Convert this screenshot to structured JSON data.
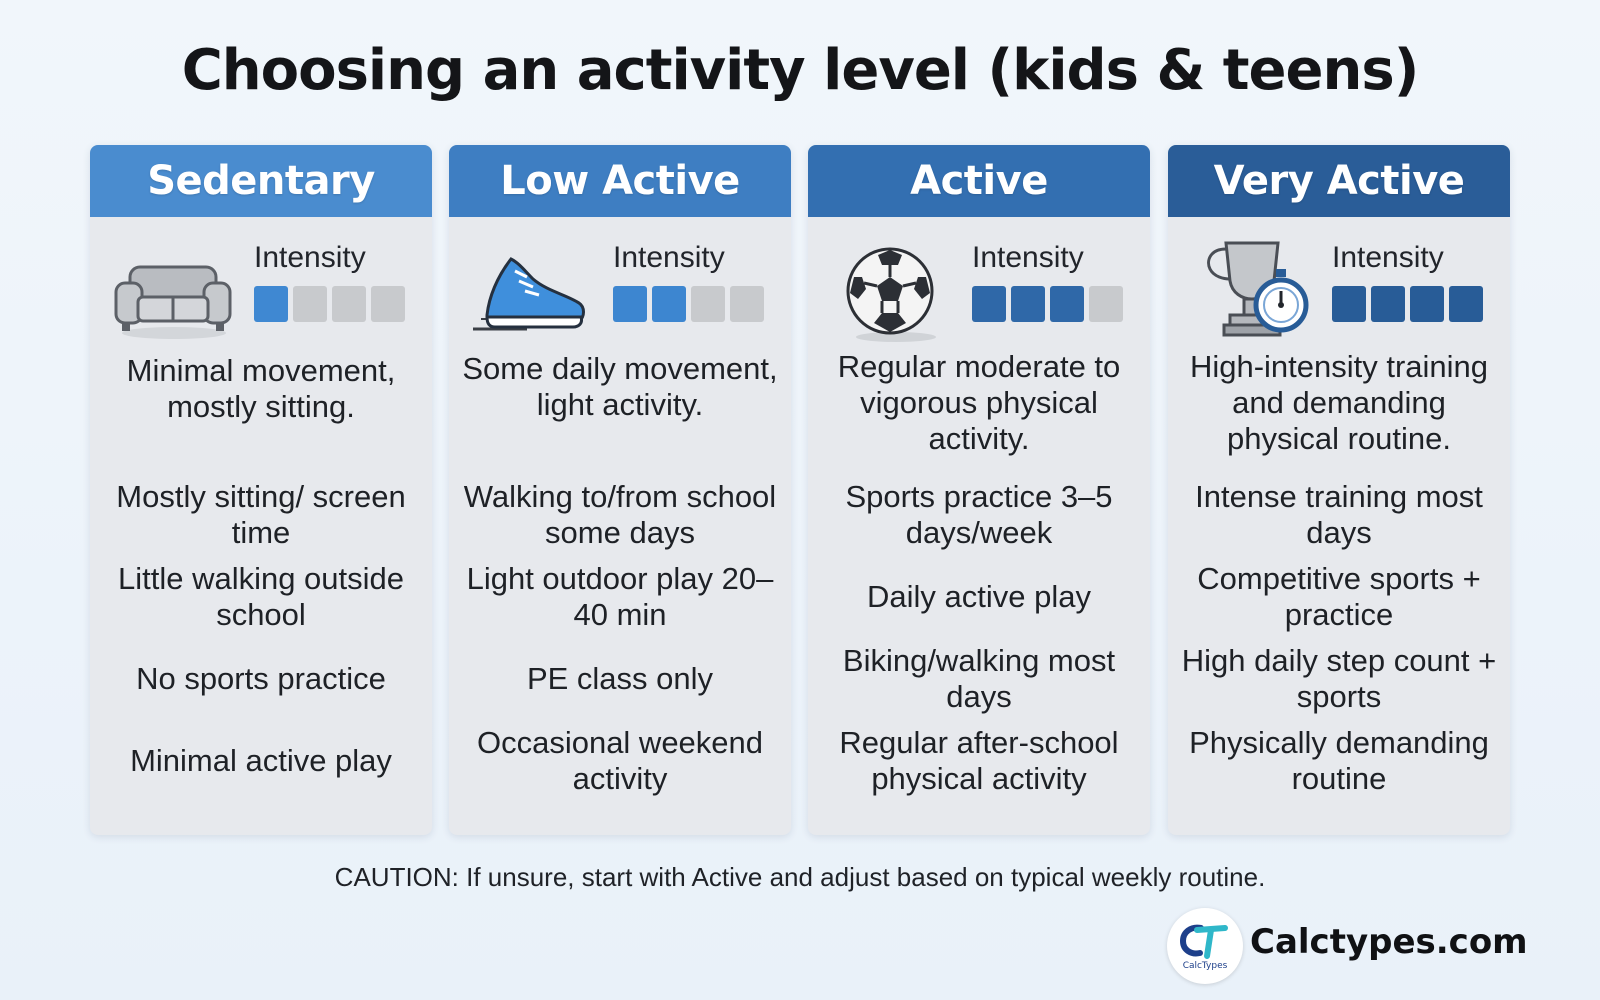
{
  "title": "Choosing an activity level (kids & teens)",
  "colors": {
    "active_segment": "#3c7fc4",
    "inactive_segment": "#c8cacd",
    "card_background": "#e7e9ed"
  },
  "cards": [
    {
      "title": "Sedentary",
      "header_color": "#4a8ccf",
      "icon": "couch-icon",
      "intensity_label": "Intensity",
      "intensity_level": 1,
      "intensity_max": 4,
      "segment_color": "#3f88d2",
      "description": "Minimal movement, mostly sitting.",
      "bullets": [
        "Mostly sitting/ screen time",
        "Little walking outside school",
        "No sports practice",
        "Minimal active play"
      ]
    },
    {
      "title": "Low Active",
      "header_color": "#3e7ec2",
      "icon": "sneaker-icon",
      "intensity_label": "Intensity",
      "intensity_level": 2,
      "intensity_max": 4,
      "segment_color": "#3d86d0",
      "description": "Some daily movement, light activity.",
      "bullets": [
        "Walking to/from school some days",
        "Light outdoor play 20–40 min",
        "PE class only",
        "Occasional weekend activity"
      ]
    },
    {
      "title": "Active",
      "header_color": "#336fb1",
      "icon": "soccer-ball-icon",
      "intensity_label": "Intensity",
      "intensity_level": 3,
      "intensity_max": 4,
      "segment_color": "#2f68a8",
      "description": "Regular moderate to vigorous physical activity.",
      "bullets": [
        "Sports practice 3–5 days/week",
        "Daily active play",
        "Biking/walking most days",
        "Regular after-school physical activity"
      ]
    },
    {
      "title": "Very Active",
      "header_color": "#2a5d98",
      "icon": "trophy-stopwatch-icon",
      "intensity_label": "Intensity",
      "intensity_level": 4,
      "intensity_max": 4,
      "segment_color": "#285c97",
      "description": "High-intensity training and demanding physical routine.",
      "bullets": [
        "Intense training most days",
        "Competitive sports + practice",
        "High daily step count + sports",
        "Physically demanding routine"
      ]
    }
  ],
  "caution": "CAUTION: If unsure, start with Active and adjust based on typical weekly routine.",
  "brand": {
    "logo_text": "CalcTypes",
    "logo_initials": "CT",
    "name": "Calctypes.com"
  }
}
